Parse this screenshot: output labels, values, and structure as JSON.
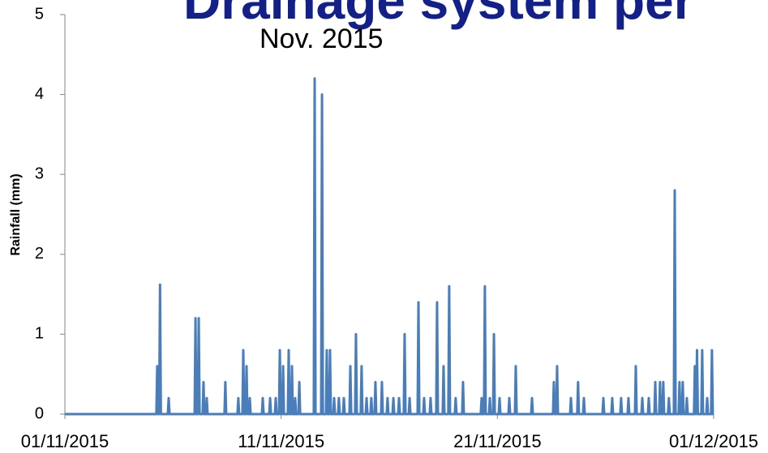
{
  "chart_data": {
    "type": "line",
    "title": "Drainage system per",
    "subtitle": "Nov. 2015",
    "y_label": "Rainfall (mm)",
    "xlim": [
      0,
      30
    ],
    "xticks": [
      {
        "value": 0,
        "label": "01/11/2015"
      },
      {
        "value": 10,
        "label": "11/11/2015"
      },
      {
        "value": 20,
        "label": "21/11/2015"
      },
      {
        "value": 30,
        "label": "01/12/2015"
      }
    ],
    "ylim": [
      0,
      5
    ],
    "yticks": [
      0,
      1,
      2,
      3,
      4,
      5
    ],
    "grid": false,
    "series": [
      {
        "name": "Rainfall",
        "color": "#4a7ebb",
        "x": [
          0,
          4.23,
          4.27,
          4.31,
          4.36,
          4.4,
          4.44,
          4.76,
          4.8,
          4.84,
          6,
          6.04,
          6.08,
          6.15,
          6.19,
          6.23,
          6.37,
          6.41,
          6.45,
          6.52,
          6.56,
          6.6,
          7.38,
          7.42,
          7.46,
          7.98,
          8.02,
          8.06,
          8.21,
          8.25,
          8.29,
          8.36,
          8.4,
          8.44,
          8.51,
          8.55,
          8.59,
          9.11,
          9.15,
          9.19,
          9.45,
          9.49,
          9.53,
          9.71,
          9.75,
          9.79,
          9.9,
          9.94,
          9.98,
          10.05,
          10.09,
          10.13,
          10.31,
          10.35,
          10.39,
          10.46,
          10.5,
          10.54,
          10.61,
          10.65,
          10.69,
          10.8,
          10.84,
          10.88,
          11.51,
          11.55,
          11.59,
          11.85,
          11.89,
          11.93,
          12.07,
          12.11,
          12.15,
          12.22,
          12.26,
          12.3,
          12.41,
          12.45,
          12.49,
          12.63,
          12.67,
          12.71,
          12.86,
          12.9,
          12.94,
          13.16,
          13.2,
          13.24,
          13.42,
          13.46,
          13.5,
          13.68,
          13.72,
          13.76,
          13.91,
          13.95,
          13.99,
          14.13,
          14.17,
          14.21,
          14.32,
          14.36,
          14.4,
          14.62,
          14.66,
          14.7,
          14.88,
          14.92,
          14.96,
          15.15,
          15.19,
          15.23,
          15.41,
          15.45,
          15.49,
          15.67,
          15.71,
          15.75,
          15.9,
          15.94,
          15.98,
          16.31,
          16.35,
          16.39,
          16.57,
          16.61,
          16.65,
          16.87,
          16.91,
          16.95,
          17.17,
          17.21,
          17.25,
          17.47,
          17.51,
          17.55,
          17.73,
          17.77,
          17.81,
          18.03,
          18.07,
          18.11,
          18.37,
          18.41,
          18.45,
          19.23,
          19.27,
          19.31,
          19.38,
          19.42,
          19.46,
          19.61,
          19.65,
          19.69,
          19.8,
          19.84,
          19.88,
          20.06,
          20.1,
          20.14,
          20.51,
          20.55,
          20.59,
          20.81,
          20.85,
          20.89,
          21.56,
          21.6,
          21.64,
          22.57,
          22.61,
          22.65,
          22.72,
          22.76,
          22.8,
          23.36,
          23.4,
          23.44,
          23.69,
          23.73,
          23.77,
          23.96,
          24,
          24.04,
          24.86,
          24.9,
          24.94,
          25.27,
          25.31,
          25.35,
          25.68,
          25.72,
          25.76,
          26.02,
          26.06,
          26.1,
          26.36,
          26.4,
          26.44,
          26.66,
          26.7,
          26.74,
          26.96,
          27,
          27.04,
          27.26,
          27.3,
          27.34,
          27.48,
          27.52,
          27.56,
          27.63,
          27.67,
          27.71,
          27.89,
          27.93,
          27.97,
          28.16,
          28.2,
          28.24,
          28.38,
          28.42,
          28.46,
          28.53,
          28.57,
          28.61,
          28.72,
          28.76,
          28.8,
          29.09,
          29.13,
          29.17,
          29.19,
          29.23,
          29.27,
          29.43,
          29.47,
          29.51,
          29.66,
          29.7,
          29.74,
          29.88,
          29.92,
          29.96,
          30
        ],
        "values": [
          0,
          0,
          0.6,
          0,
          0,
          1.62,
          0,
          0,
          0.2,
          0,
          0,
          1.2,
          0,
          0,
          1.2,
          0,
          0,
          0.4,
          0,
          0,
          0.2,
          0,
          0,
          0.4,
          0,
          0,
          0.2,
          0,
          0,
          0.8,
          0,
          0,
          0.6,
          0,
          0,
          0.2,
          0,
          0,
          0.2,
          0,
          0,
          0.2,
          0,
          0,
          0.2,
          0,
          0,
          0.8,
          0,
          0,
          0.6,
          0,
          0,
          0.8,
          0,
          0,
          0.6,
          0,
          0,
          0.2,
          0,
          0,
          0.4,
          0,
          0,
          4.2,
          0,
          0,
          4.0,
          0,
          0,
          0.8,
          0,
          0,
          0.8,
          0,
          0,
          0.2,
          0,
          0,
          0.2,
          0,
          0,
          0.2,
          0,
          0,
          0.6,
          0,
          0,
          1.0,
          0,
          0,
          0.6,
          0,
          0,
          0.2,
          0,
          0,
          0.2,
          0,
          0,
          0.4,
          0,
          0,
          0.4,
          0,
          0,
          0.2,
          0,
          0,
          0.2,
          0,
          0,
          0.2,
          0,
          0,
          1.0,
          0,
          0,
          0.2,
          0,
          0,
          1.4,
          0,
          0,
          0.2,
          0,
          0,
          0.2,
          0,
          0,
          1.4,
          0,
          0,
          0.6,
          0,
          0,
          1.6,
          0,
          0,
          0.2,
          0,
          0,
          0.4,
          0,
          0,
          0.2,
          0,
          0,
          1.6,
          0,
          0,
          0.2,
          0,
          0,
          1.0,
          0,
          0,
          0.2,
          0,
          0,
          0.2,
          0,
          0,
          0.6,
          0,
          0,
          0.2,
          0,
          0,
          0.4,
          0,
          0,
          0.6,
          0,
          0,
          0.2,
          0,
          0,
          0.4,
          0,
          0,
          0.2,
          0,
          0,
          0.2,
          0,
          0,
          0.2,
          0,
          0,
          0.2,
          0,
          0,
          0.2,
          0,
          0,
          0.6,
          0,
          0,
          0.2,
          0,
          0,
          0.2,
          0,
          0,
          0.4,
          0,
          0,
          0.4,
          0,
          0,
          0.4,
          0,
          0,
          0.2,
          0,
          0,
          2.8,
          0,
          0,
          0.4,
          0,
          0,
          0.4,
          0,
          0,
          0.2,
          0,
          0,
          0.6,
          0,
          0,
          0.8,
          0,
          0,
          0.8,
          0,
          0,
          0.2,
          0,
          0,
          0.8,
          0,
          0
        ]
      }
    ]
  }
}
